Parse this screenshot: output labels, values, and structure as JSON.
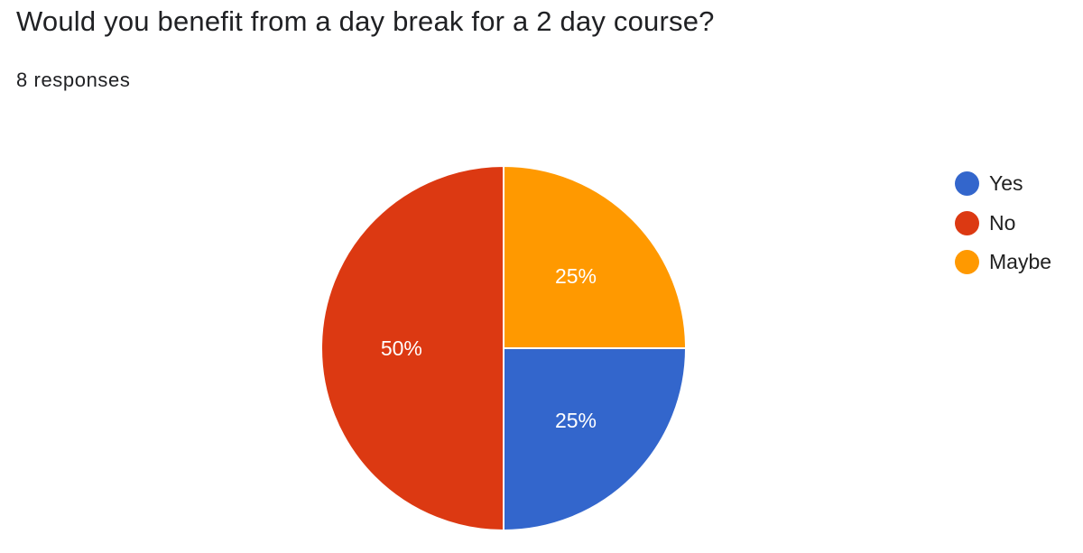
{
  "question": {
    "title": "Would you benefit from a day break for a 2 day course?",
    "responses": "8 responses"
  },
  "chart_data": {
    "type": "pie",
    "categories": [
      "Yes",
      "No",
      "Maybe"
    ],
    "values": [
      2,
      4,
      2
    ],
    "percent_labels": [
      "25%",
      "50%",
      "25%"
    ],
    "colors": [
      "#3366cc",
      "#dc3912",
      "#ff9900"
    ],
    "legend_position": "right"
  }
}
